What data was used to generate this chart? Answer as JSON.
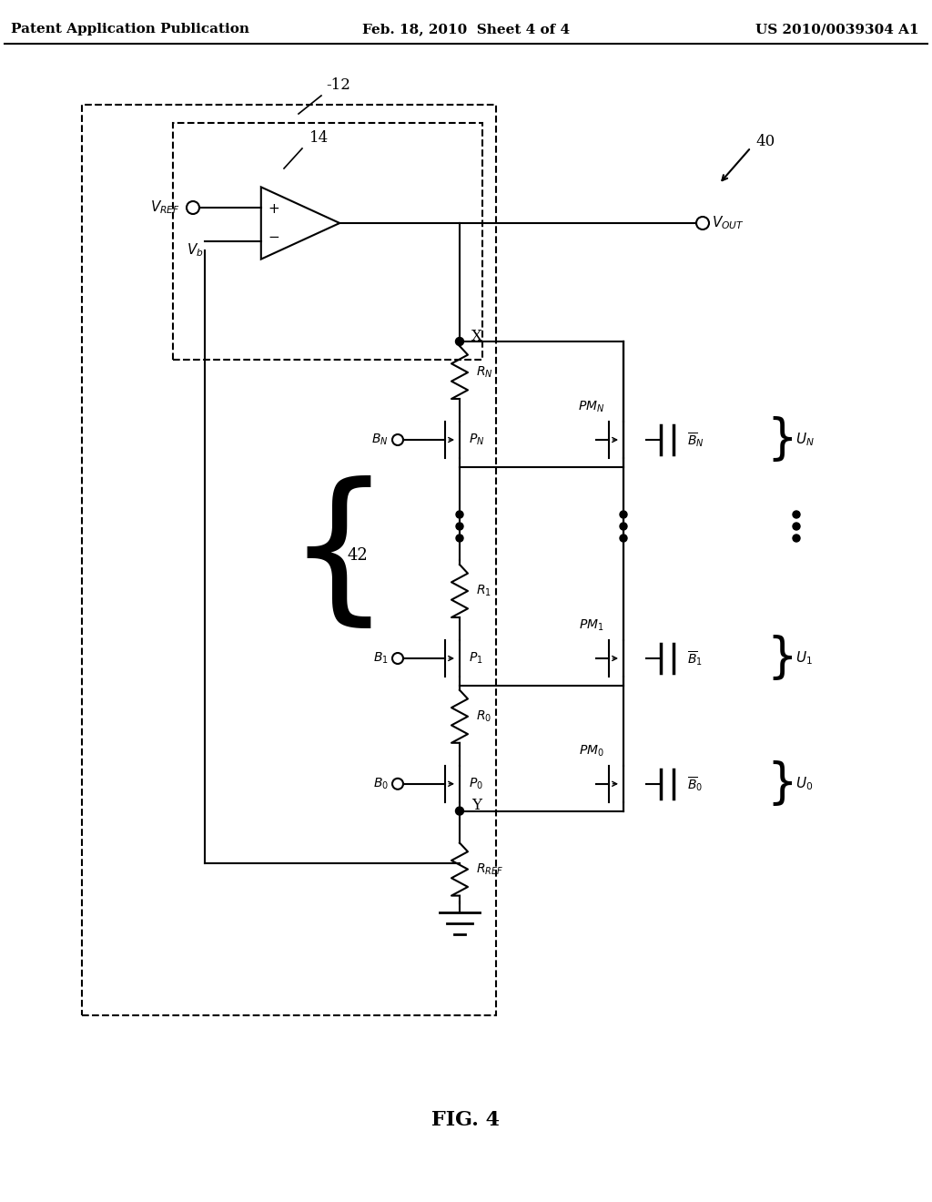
{
  "bg_color": "#ffffff",
  "line_color": "#000000",
  "header_left": "Patent Application Publication",
  "header_mid": "Feb. 18, 2010  Sheet 4 of 4",
  "header_right": "US 2010/0039304 A1",
  "fig_label": "FIG. 4",
  "label_12": "-12",
  "label_14": "14",
  "label_40": "40",
  "label_42": "42",
  "font_size_header": 11,
  "font_size_label": 12,
  "font_size_fig": 16
}
